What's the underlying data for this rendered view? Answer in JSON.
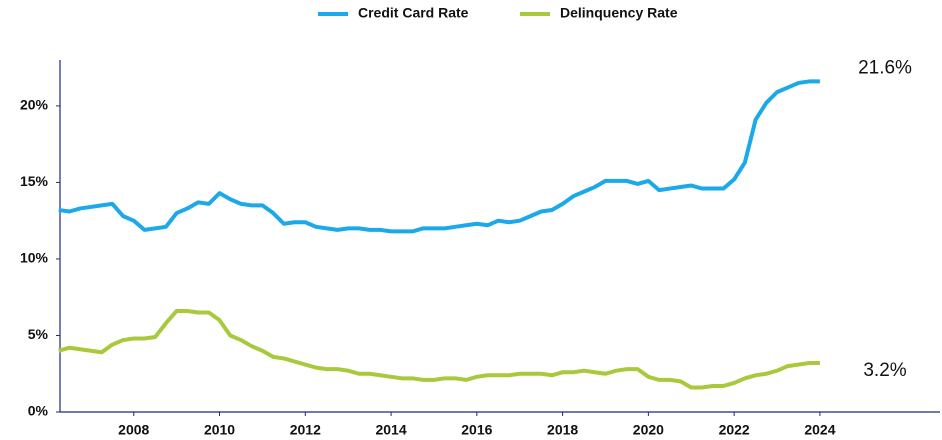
{
  "chart_data": {
    "type": "line",
    "x": [
      2006.25,
      2006.5,
      2006.75,
      2007,
      2007.25,
      2007.5,
      2007.75,
      2008,
      2008.25,
      2008.5,
      2008.75,
      2009,
      2009.25,
      2009.5,
      2009.75,
      2010,
      2010.25,
      2010.5,
      2010.75,
      2011,
      2011.25,
      2011.5,
      2011.75,
      2012,
      2012.25,
      2012.5,
      2012.75,
      2013,
      2013.25,
      2013.5,
      2013.75,
      2014,
      2014.25,
      2014.5,
      2014.75,
      2015,
      2015.25,
      2015.5,
      2015.75,
      2016,
      2016.25,
      2016.5,
      2016.75,
      2017,
      2017.25,
      2017.5,
      2017.75,
      2018,
      2018.25,
      2018.5,
      2018.75,
      2019,
      2019.25,
      2019.5,
      2019.75,
      2020,
      2020.25,
      2020.5,
      2020.75,
      2021,
      2021.25,
      2021.5,
      2021.75,
      2022,
      2022.25,
      2022.5,
      2022.75,
      2023,
      2023.25,
      2023.5,
      2023.75,
      2024
    ],
    "series": [
      {
        "name": "Credit Card Rate",
        "color": "#1ba9ea",
        "values": [
          13.2,
          13.1,
          13.3,
          13.4,
          13.5,
          13.6,
          12.8,
          12.5,
          11.9,
          12.0,
          12.1,
          13.0,
          13.3,
          13.7,
          13.6,
          14.3,
          13.9,
          13.6,
          13.5,
          13.5,
          13.0,
          12.3,
          12.4,
          12.4,
          12.1,
          12.0,
          11.9,
          12.0,
          12.0,
          11.9,
          11.9,
          11.8,
          11.8,
          11.8,
          12.0,
          12.0,
          12.0,
          12.1,
          12.2,
          12.3,
          12.2,
          12.5,
          12.4,
          12.5,
          12.8,
          13.1,
          13.2,
          13.6,
          14.1,
          14.4,
          14.7,
          15.1,
          15.1,
          15.1,
          14.9,
          15.1,
          14.5,
          14.6,
          14.7,
          14.8,
          14.6,
          14.6,
          14.6,
          15.2,
          16.3,
          19.1,
          20.2,
          20.9,
          21.2,
          21.5,
          21.6,
          21.6
        ]
      },
      {
        "name": "Delinquency Rate",
        "color": "#a8c93b",
        "values": [
          4.0,
          4.2,
          4.1,
          4.0,
          3.9,
          4.4,
          4.7,
          4.8,
          4.8,
          4.9,
          5.8,
          6.6,
          6.6,
          6.5,
          6.5,
          6.0,
          5.0,
          4.7,
          4.3,
          4.0,
          3.6,
          3.5,
          3.3,
          3.1,
          2.9,
          2.8,
          2.8,
          2.7,
          2.5,
          2.5,
          2.4,
          2.3,
          2.2,
          2.2,
          2.1,
          2.1,
          2.2,
          2.2,
          2.1,
          2.3,
          2.4,
          2.4,
          2.4,
          2.5,
          2.5,
          2.5,
          2.4,
          2.6,
          2.6,
          2.7,
          2.6,
          2.5,
          2.7,
          2.8,
          2.8,
          2.3,
          2.1,
          2.1,
          2.0,
          1.6,
          1.6,
          1.7,
          1.7,
          1.9,
          2.2,
          2.4,
          2.5,
          2.7,
          3.0,
          3.1,
          3.2,
          3.2
        ]
      }
    ],
    "annotations": [
      "21.6%",
      "3.2%"
    ],
    "xlim": [
      2006.28,
      2026.8
    ],
    "xticks": [
      2008,
      2010,
      2012,
      2014,
      2016,
      2018,
      2020,
      2022,
      2024
    ],
    "ylim": [
      0,
      23
    ],
    "yticks": [
      {
        "value": 0,
        "label": "0%"
      },
      {
        "value": 5,
        "label": "5%"
      },
      {
        "value": 10,
        "label": "10%"
      },
      {
        "value": 15,
        "label": "15%"
      },
      {
        "value": 20,
        "label": "20%"
      }
    ],
    "grid": false,
    "legend": "top"
  }
}
